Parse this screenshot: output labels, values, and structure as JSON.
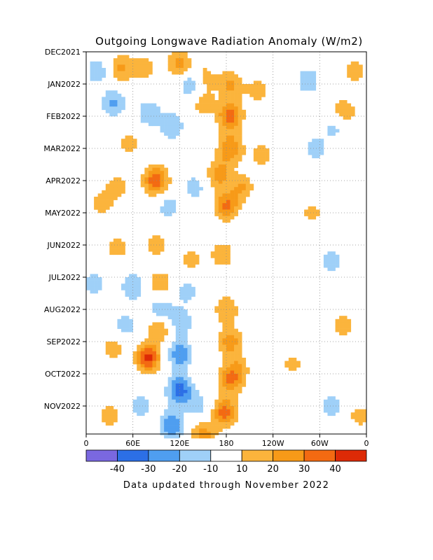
{
  "chart_data": {
    "type": "heatmap",
    "title": "Outgoing Longwave Radiation Anomaly (W/m2)",
    "footer": "Data updated through November 2022",
    "xlabel": "",
    "ylabel": "",
    "x_ticks": [
      "0",
      "60E",
      "120E",
      "180",
      "120W",
      "60W",
      "0"
    ],
    "x_tick_lon": [
      0,
      60,
      120,
      180,
      240,
      300,
      360
    ],
    "y_ticks": [
      "DEC2021",
      "JAN2022",
      "FEB2022",
      "MAR2022",
      "APR2022",
      "MAY2022",
      "JUN2022",
      "JUL2022",
      "AUG2022",
      "SEP2022",
      "OCT2022",
      "NOV2022"
    ],
    "y_tick_month": [
      0,
      1,
      2,
      3,
      4,
      5,
      6,
      7,
      8,
      9,
      10,
      11
    ],
    "xlim": [
      0,
      360
    ],
    "ylim": [
      "DEC2021",
      "NOV2022"
    ],
    "grid": true,
    "colorbar": {
      "labels": [
        "-40",
        "-30",
        "-20",
        "-10",
        "10",
        "20",
        "30",
        "40"
      ],
      "colors": [
        "#7a68e0",
        "#2c6fe6",
        "#4f9ef0",
        "#9fd0f8",
        "#ffffff",
        "#fbb43c",
        "#f79a18",
        "#f36a12",
        "#dd2a06"
      ]
    },
    "anomalies": [
      {
        "lon": 15,
        "month": 0.6,
        "value": -18
      },
      {
        "lon": 45,
        "month": 0.5,
        "value": 22
      },
      {
        "lon": 75,
        "month": 0.5,
        "value": 15
      },
      {
        "lon": 120,
        "month": 0.4,
        "value": 25
      },
      {
        "lon": 135,
        "month": 1.0,
        "value": -25
      },
      {
        "lon": 150,
        "month": 0.8,
        "value": 18
      },
      {
        "lon": 185,
        "month": 1.0,
        "value": 22
      },
      {
        "lon": 285,
        "month": 0.9,
        "value": -18
      },
      {
        "lon": 345,
        "month": 0.6,
        "value": 14
      },
      {
        "lon": 35,
        "month": 1.6,
        "value": -22
      },
      {
        "lon": 80,
        "month": 1.9,
        "value": -18
      },
      {
        "lon": 55,
        "month": 2.8,
        "value": 14
      },
      {
        "lon": 110,
        "month": 2.3,
        "value": -20
      },
      {
        "lon": 150,
        "month": 1.6,
        "value": 16
      },
      {
        "lon": 185,
        "month": 2.0,
        "value": 35
      },
      {
        "lon": 185,
        "month": 3.0,
        "value": 30
      },
      {
        "lon": 170,
        "month": 3.8,
        "value": 25
      },
      {
        "lon": 180,
        "month": 4.8,
        "value": 32
      },
      {
        "lon": 200,
        "month": 4.2,
        "value": 20
      },
      {
        "lon": 225,
        "month": 3.2,
        "value": 14
      },
      {
        "lon": 220,
        "month": 1.2,
        "value": 15
      },
      {
        "lon": 90,
        "month": 4.0,
        "value": 38
      },
      {
        "lon": 40,
        "month": 4.2,
        "value": 15
      },
      {
        "lon": 105,
        "month": 4.8,
        "value": -15
      },
      {
        "lon": 140,
        "month": 4.2,
        "value": -15
      },
      {
        "lon": 20,
        "month": 4.7,
        "value": 14
      },
      {
        "lon": 90,
        "month": 6.0,
        "value": 16
      },
      {
        "lon": 40,
        "month": 6.1,
        "value": 14
      },
      {
        "lon": 135,
        "month": 6.5,
        "value": 14
      },
      {
        "lon": 175,
        "month": 6.3,
        "value": 18
      },
      {
        "lon": 320,
        "month": 2.3,
        "value": -16
      },
      {
        "lon": 295,
        "month": 3.0,
        "value": -14
      },
      {
        "lon": 290,
        "month": 5.0,
        "value": 13
      },
      {
        "lon": 330,
        "month": 1.9,
        "value": 22
      },
      {
        "lon": 315,
        "month": 6.5,
        "value": -14
      },
      {
        "lon": 10,
        "month": 7.2,
        "value": -14
      },
      {
        "lon": 60,
        "month": 7.3,
        "value": -20
      },
      {
        "lon": 95,
        "month": 7.2,
        "value": 18
      },
      {
        "lon": 130,
        "month": 7.4,
        "value": -15
      },
      {
        "lon": 95,
        "month": 8.1,
        "value": -28
      },
      {
        "lon": 95,
        "month": 8.5,
        "value": 30
      },
      {
        "lon": 50,
        "month": 8.5,
        "value": -15
      },
      {
        "lon": 120,
        "month": 8.4,
        "value": -20
      },
      {
        "lon": 180,
        "month": 8.0,
        "value": 20
      },
      {
        "lon": 185,
        "month": 9.0,
        "value": 25
      },
      {
        "lon": 185,
        "month": 10.2,
        "value": 28
      },
      {
        "lon": 178,
        "month": 11.2,
        "value": 35
      },
      {
        "lon": 195,
        "month": 9.8,
        "value": 15
      },
      {
        "lon": 35,
        "month": 9.2,
        "value": 15
      },
      {
        "lon": 80,
        "month": 9.5,
        "value": 42
      },
      {
        "lon": 120,
        "month": 9.4,
        "value": -28
      },
      {
        "lon": 120,
        "month": 10.5,
        "value": -36
      },
      {
        "lon": 110,
        "month": 11.6,
        "value": -30
      },
      {
        "lon": 145,
        "month": 11.0,
        "value": -15
      },
      {
        "lon": 30,
        "month": 11.3,
        "value": 15
      },
      {
        "lon": 70,
        "month": 11.0,
        "value": -15
      },
      {
        "lon": 150,
        "month": 11.9,
        "value": 25
      },
      {
        "lon": 330,
        "month": 8.5,
        "value": 14
      },
      {
        "lon": 315,
        "month": 11.0,
        "value": -15
      },
      {
        "lon": 350,
        "month": 11.3,
        "value": 14
      },
      {
        "lon": 265,
        "month": 9.7,
        "value": 13
      }
    ]
  }
}
